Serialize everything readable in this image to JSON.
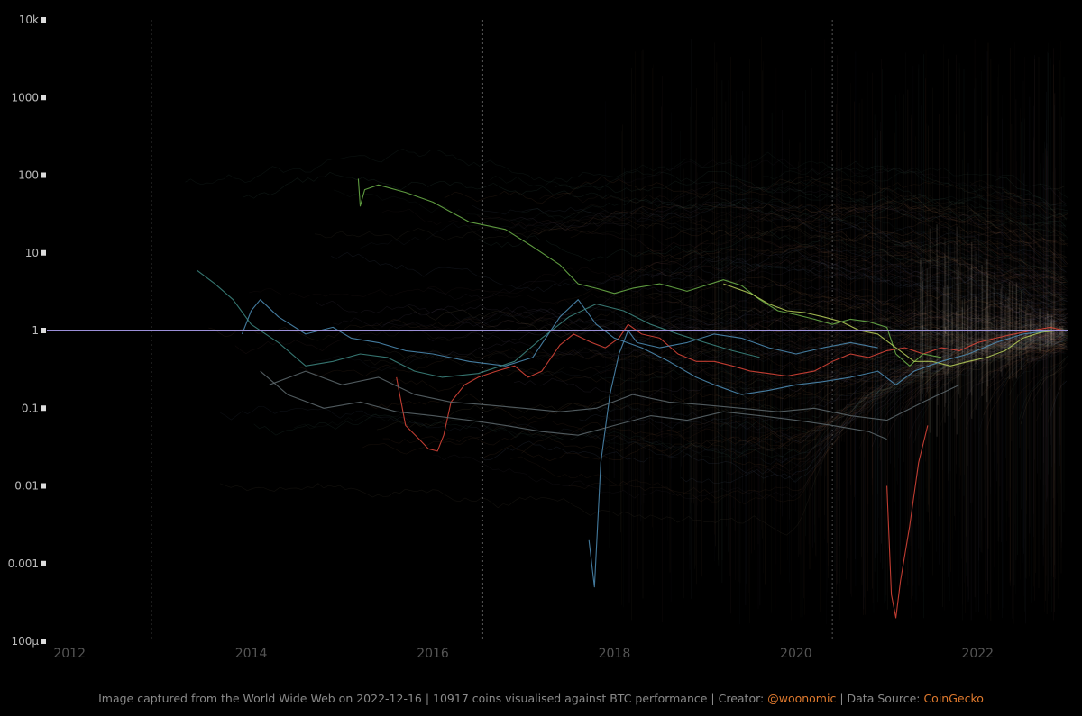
{
  "footer": {
    "prefix": "Image captured from the World Wide Web on 2022-12-16 | 10917 coins visualised against BTC performance | Creator: ",
    "creator": "@woonomic",
    "separator": " | Data Source: ",
    "source": "CoinGecko"
  },
  "colors": {
    "background": "#000000",
    "baseline": "#9b8fd8",
    "accent": "#e07a2e",
    "red_series": "#e0463a",
    "green_series": "#6fb54a",
    "yellowgreen_series": "#b8d25a",
    "blue_series": "#4f8fb8",
    "teal_series": "#3e8a84",
    "gray_series": "#5e6a6f"
  },
  "chart_data": {
    "type": "line",
    "y_scale": "log",
    "y_ticks": [
      {
        "value": 10000,
        "label": "10k"
      },
      {
        "value": 1000,
        "label": "1000"
      },
      {
        "value": 100,
        "label": "100"
      },
      {
        "value": 10,
        "label": "10"
      },
      {
        "value": 1,
        "label": "1"
      },
      {
        "value": 0.1,
        "label": "0.1"
      },
      {
        "value": 0.01,
        "label": "0.01"
      },
      {
        "value": 0.001,
        "label": "0.001"
      },
      {
        "value": 0.0001,
        "label": "100µ"
      }
    ],
    "x_ticks": [
      {
        "value": 2012,
        "label": "2012"
      },
      {
        "value": 2014,
        "label": "2014"
      },
      {
        "value": 2016,
        "label": "2016"
      },
      {
        "value": 2018,
        "label": "2018"
      },
      {
        "value": 2020,
        "label": "2020"
      },
      {
        "value": 2022,
        "label": "2022"
      }
    ],
    "xlim": [
      2011.75,
      2023.0
    ],
    "ylim": [
      0.0001,
      10000
    ],
    "halving_lines": [
      2012.9,
      2016.55,
      2020.4
    ],
    "baseline_value": 1,
    "series": [
      {
        "color_key": "red_series",
        "points": [
          [
            2015.6,
            0.25
          ],
          [
            2015.7,
            0.06
          ],
          [
            2015.85,
            0.04
          ],
          [
            2015.95,
            0.03
          ],
          [
            2016.05,
            0.028
          ],
          [
            2016.12,
            0.045
          ],
          [
            2016.2,
            0.12
          ],
          [
            2016.35,
            0.2
          ],
          [
            2016.5,
            0.25
          ],
          [
            2016.7,
            0.3
          ],
          [
            2016.9,
            0.35
          ],
          [
            2017.05,
            0.25
          ],
          [
            2017.2,
            0.3
          ],
          [
            2017.4,
            0.65
          ],
          [
            2017.55,
            0.9
          ],
          [
            2017.75,
            0.7
          ],
          [
            2017.9,
            0.6
          ],
          [
            2018.05,
            0.8
          ],
          [
            2018.15,
            1.2
          ],
          [
            2018.3,
            0.9
          ],
          [
            2018.5,
            0.8
          ],
          [
            2018.7,
            0.5
          ],
          [
            2018.9,
            0.4
          ],
          [
            2019.1,
            0.4
          ],
          [
            2019.3,
            0.35
          ],
          [
            2019.5,
            0.3
          ],
          [
            2019.7,
            0.28
          ],
          [
            2019.9,
            0.26
          ],
          [
            2020.05,
            0.28
          ],
          [
            2020.2,
            0.3
          ],
          [
            2020.4,
            0.4
          ],
          [
            2020.6,
            0.5
          ],
          [
            2020.8,
            0.45
          ],
          [
            2021.0,
            0.55
          ],
          [
            2021.2,
            0.6
          ],
          [
            2021.4,
            0.5
          ],
          [
            2021.6,
            0.6
          ],
          [
            2021.8,
            0.55
          ],
          [
            2022.0,
            0.7
          ],
          [
            2022.2,
            0.8
          ],
          [
            2022.4,
            0.9
          ],
          [
            2022.6,
            1.0
          ],
          [
            2022.8,
            1.1
          ],
          [
            2022.95,
            1.0
          ]
        ]
      },
      {
        "color_key": "green_series",
        "points": [
          [
            2015.18,
            90
          ],
          [
            2015.2,
            40
          ],
          [
            2015.25,
            65
          ],
          [
            2015.4,
            75
          ],
          [
            2015.7,
            60
          ],
          [
            2016.0,
            45
          ],
          [
            2016.4,
            25
          ],
          [
            2016.8,
            20
          ],
          [
            2017.1,
            12
          ],
          [
            2017.4,
            7
          ],
          [
            2017.6,
            4
          ],
          [
            2017.8,
            3.5
          ],
          [
            2018.0,
            3
          ],
          [
            2018.2,
            3.5
          ],
          [
            2018.5,
            4
          ],
          [
            2018.8,
            3.2
          ],
          [
            2019.0,
            3.8
          ],
          [
            2019.2,
            4.5
          ],
          [
            2019.4,
            3.8
          ],
          [
            2019.6,
            2.5
          ],
          [
            2019.8,
            1.8
          ],
          [
            2020.0,
            1.6
          ],
          [
            2020.2,
            1.4
          ],
          [
            2020.4,
            1.2
          ],
          [
            2020.6,
            1.4
          ],
          [
            2020.8,
            1.3
          ],
          [
            2021.0,
            1.1
          ],
          [
            2021.1,
            0.5
          ],
          [
            2021.25,
            0.35
          ],
          [
            2021.4,
            0.5
          ],
          [
            2021.6,
            0.45
          ]
        ]
      },
      {
        "color_key": "yellowgreen_series",
        "points": [
          [
            2019.2,
            4.0
          ],
          [
            2019.5,
            3.0
          ],
          [
            2019.7,
            2.2
          ],
          [
            2019.9,
            1.8
          ],
          [
            2020.1,
            1.7
          ],
          [
            2020.3,
            1.5
          ],
          [
            2020.5,
            1.3
          ],
          [
            2020.7,
            1.0
          ],
          [
            2020.9,
            0.9
          ],
          [
            2021.1,
            0.6
          ],
          [
            2021.3,
            0.4
          ],
          [
            2021.5,
            0.4
          ],
          [
            2021.7,
            0.35
          ],
          [
            2021.9,
            0.4
          ],
          [
            2022.1,
            0.45
          ],
          [
            2022.3,
            0.55
          ],
          [
            2022.5,
            0.8
          ],
          [
            2022.7,
            0.95
          ],
          [
            2022.9,
            1.0
          ]
        ]
      },
      {
        "color_key": "blue_series",
        "points": [
          [
            2013.9,
            0.9
          ],
          [
            2014.0,
            1.8
          ],
          [
            2014.1,
            2.5
          ],
          [
            2014.3,
            1.5
          ],
          [
            2014.6,
            0.9
          ],
          [
            2014.9,
            1.1
          ],
          [
            2015.1,
            0.8
          ],
          [
            2015.4,
            0.7
          ],
          [
            2015.7,
            0.55
          ],
          [
            2016.0,
            0.5
          ],
          [
            2016.4,
            0.4
          ],
          [
            2016.8,
            0.35
          ],
          [
            2017.1,
            0.45
          ],
          [
            2017.4,
            1.5
          ],
          [
            2017.6,
            2.5
          ],
          [
            2017.8,
            1.2
          ],
          [
            2018.0,
            0.8
          ],
          [
            2018.3,
            0.6
          ],
          [
            2018.6,
            0.4
          ],
          [
            2018.9,
            0.25
          ],
          [
            2019.1,
            0.2
          ],
          [
            2019.4,
            0.15
          ],
          [
            2019.7,
            0.17
          ],
          [
            2020.0,
            0.2
          ],
          [
            2020.3,
            0.22
          ],
          [
            2020.6,
            0.25
          ],
          [
            2020.9,
            0.3
          ],
          [
            2021.1,
            0.2
          ],
          [
            2021.3,
            0.3
          ],
          [
            2021.6,
            0.4
          ],
          [
            2021.9,
            0.5
          ],
          [
            2022.2,
            0.7
          ],
          [
            2022.5,
            0.9
          ],
          [
            2022.8,
            1.0
          ]
        ]
      },
      {
        "color_key": "blue_series",
        "points": [
          [
            2017.72,
            0.002
          ],
          [
            2017.78,
            0.0005
          ],
          [
            2017.85,
            0.02
          ],
          [
            2017.95,
            0.15
          ],
          [
            2018.05,
            0.5
          ],
          [
            2018.15,
            1.0
          ],
          [
            2018.25,
            0.7
          ],
          [
            2018.5,
            0.6
          ],
          [
            2018.8,
            0.7
          ],
          [
            2019.1,
            0.9
          ],
          [
            2019.4,
            0.8
          ],
          [
            2019.7,
            0.6
          ],
          [
            2020.0,
            0.5
          ],
          [
            2020.3,
            0.6
          ],
          [
            2020.6,
            0.7
          ],
          [
            2020.9,
            0.6
          ]
        ]
      },
      {
        "color_key": "teal_series",
        "points": [
          [
            2013.4,
            6
          ],
          [
            2013.6,
            4
          ],
          [
            2013.8,
            2.5
          ],
          [
            2014.0,
            1.2
          ],
          [
            2014.3,
            0.7
          ],
          [
            2014.6,
            0.35
          ],
          [
            2014.9,
            0.4
          ],
          [
            2015.2,
            0.5
          ],
          [
            2015.5,
            0.45
          ],
          [
            2015.8,
            0.3
          ],
          [
            2016.1,
            0.25
          ],
          [
            2016.5,
            0.28
          ],
          [
            2016.9,
            0.4
          ],
          [
            2017.2,
            0.8
          ],
          [
            2017.5,
            1.5
          ],
          [
            2017.8,
            2.2
          ],
          [
            2018.1,
            1.8
          ],
          [
            2018.4,
            1.2
          ],
          [
            2018.7,
            0.9
          ],
          [
            2019.0,
            0.7
          ],
          [
            2019.3,
            0.55
          ],
          [
            2019.6,
            0.45
          ]
        ]
      },
      {
        "color_key": "gray_series",
        "points": [
          [
            2014.1,
            0.3
          ],
          [
            2014.4,
            0.15
          ],
          [
            2014.8,
            0.1
          ],
          [
            2015.2,
            0.12
          ],
          [
            2015.6,
            0.09
          ],
          [
            2016.0,
            0.08
          ],
          [
            2016.4,
            0.07
          ],
          [
            2016.8,
            0.06
          ],
          [
            2017.2,
            0.05
          ],
          [
            2017.6,
            0.045
          ],
          [
            2018.0,
            0.06
          ],
          [
            2018.4,
            0.08
          ],
          [
            2018.8,
            0.07
          ],
          [
            2019.2,
            0.09
          ],
          [
            2019.6,
            0.08
          ],
          [
            2020.0,
            0.07
          ],
          [
            2020.4,
            0.06
          ],
          [
            2020.8,
            0.05
          ],
          [
            2021.0,
            0.04
          ]
        ]
      },
      {
        "color_key": "gray_series",
        "points": [
          [
            2014.2,
            0.2
          ],
          [
            2014.6,
            0.3
          ],
          [
            2015.0,
            0.2
          ],
          [
            2015.4,
            0.25
          ],
          [
            2015.8,
            0.15
          ],
          [
            2016.2,
            0.12
          ],
          [
            2016.6,
            0.11
          ],
          [
            2017.0,
            0.1
          ],
          [
            2017.4,
            0.09
          ],
          [
            2017.8,
            0.1
          ],
          [
            2018.2,
            0.15
          ],
          [
            2018.6,
            0.12
          ],
          [
            2019.0,
            0.11
          ],
          [
            2019.4,
            0.1
          ],
          [
            2019.8,
            0.09
          ],
          [
            2020.2,
            0.1
          ],
          [
            2020.6,
            0.08
          ],
          [
            2021.0,
            0.07
          ],
          [
            2021.4,
            0.12
          ],
          [
            2021.8,
            0.2
          ]
        ]
      },
      {
        "color_key": "red_series",
        "points": [
          [
            2021.0,
            0.01
          ],
          [
            2021.05,
            0.0004
          ],
          [
            2021.1,
            0.0002
          ],
          [
            2021.15,
            0.0006
          ],
          [
            2021.25,
            0.003
          ],
          [
            2021.35,
            0.02
          ],
          [
            2021.45,
            0.06
          ]
        ]
      }
    ]
  }
}
